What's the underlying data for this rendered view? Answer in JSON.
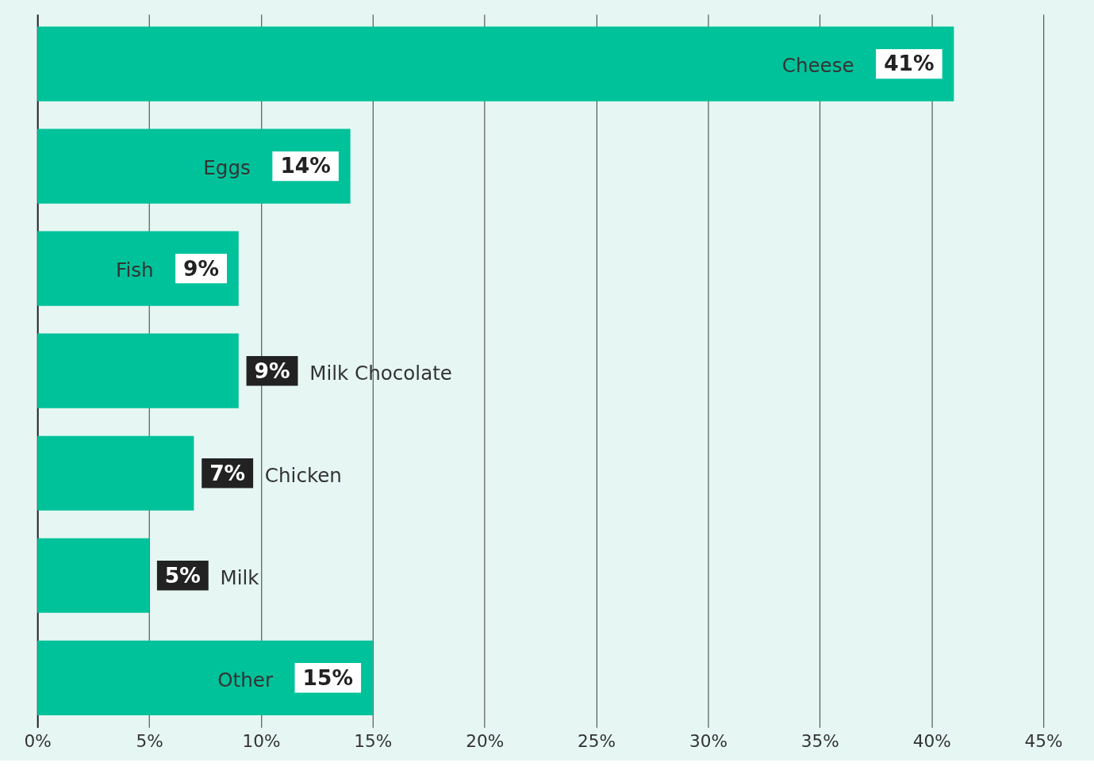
{
  "chart_data": {
    "type": "bar",
    "orientation": "horizontal",
    "categories": [
      "Cheese",
      "Eggs",
      "Fish",
      "Milk Chocolate",
      "Chicken",
      "Milk",
      "Other"
    ],
    "values": [
      41,
      14,
      9,
      9,
      7,
      5,
      15
    ],
    "value_labels": [
      "41%",
      "14%",
      "9%",
      "9%",
      "7%",
      "5%",
      "15%"
    ],
    "color": "#00c29a",
    "xlim": [
      0,
      45
    ],
    "xticks": [
      {
        "value": 0,
        "label": "0%"
      },
      {
        "value": 5,
        "label": "5%"
      },
      {
        "value": 10,
        "label": "10%"
      },
      {
        "value": 15,
        "label": "15%"
      },
      {
        "value": 20,
        "label": "20%"
      },
      {
        "value": 25,
        "label": "25%"
      },
      {
        "value": 30,
        "label": "30%"
      },
      {
        "value": 35,
        "label": "35%"
      },
      {
        "value": 40,
        "label": "40%"
      },
      {
        "value": 45,
        "label": "45%"
      }
    ],
    "grid": "x"
  }
}
